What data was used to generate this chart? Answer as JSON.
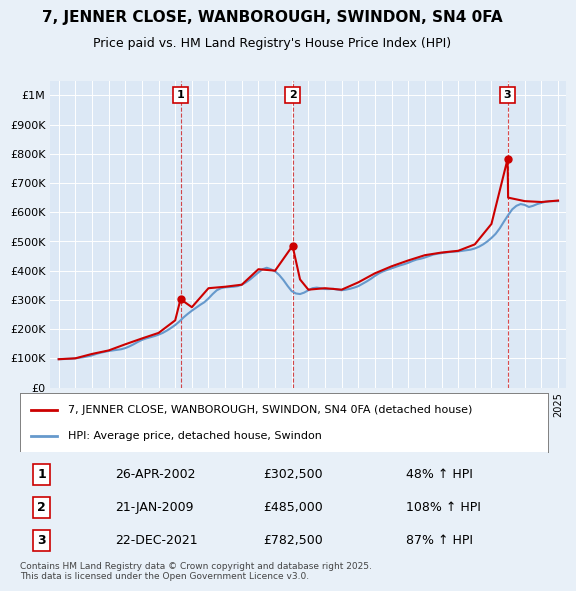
{
  "title": "7, JENNER CLOSE, WANBOROUGH, SWINDON, SN4 0FA",
  "subtitle": "Price paid vs. HM Land Registry's House Price Index (HPI)",
  "ylabel": "",
  "background_color": "#e8f0f8",
  "plot_bg_color": "#dce8f5",
  "sale_color": "#cc0000",
  "hpi_color": "#6699cc",
  "sale_label": "7, JENNER CLOSE, WANBOROUGH, SWINDON, SN4 0FA (detached house)",
  "hpi_label": "HPI: Average price, detached house, Swindon",
  "transactions": [
    {
      "num": 1,
      "date": "26-APR-2002",
      "price": 302500,
      "pct": "48%",
      "dir": "↑",
      "year": 2002.32
    },
    {
      "num": 2,
      "date": "21-JAN-2009",
      "price": 485000,
      "pct": "108%",
      "dir": "↑",
      "year": 2009.05
    },
    {
      "num": 3,
      "date": "22-DEC-2021",
      "price": 782500,
      "pct": "87%",
      "dir": "↑",
      "year": 2021.97
    }
  ],
  "footer": "Contains HM Land Registry data © Crown copyright and database right 2025.\nThis data is licensed under the Open Government Licence v3.0.",
  "ylim": [
    0,
    1050000
  ],
  "yticks": [
    0,
    100000,
    200000,
    300000,
    400000,
    500000,
    600000,
    700000,
    800000,
    900000,
    1000000
  ],
  "ytick_labels": [
    "£0",
    "£100K",
    "£200K",
    "£300K",
    "£400K",
    "£500K",
    "£600K",
    "£700K",
    "£800K",
    "£900K",
    "£1M"
  ],
  "hpi_data": {
    "years": [
      1995.0,
      1995.25,
      1995.5,
      1995.75,
      1996.0,
      1996.25,
      1996.5,
      1996.75,
      1997.0,
      1997.25,
      1997.5,
      1997.75,
      1998.0,
      1998.25,
      1998.5,
      1998.75,
      1999.0,
      1999.25,
      1999.5,
      1999.75,
      2000.0,
      2000.25,
      2000.5,
      2000.75,
      2001.0,
      2001.25,
      2001.5,
      2001.75,
      2002.0,
      2002.25,
      2002.5,
      2002.75,
      2003.0,
      2003.25,
      2003.5,
      2003.75,
      2004.0,
      2004.25,
      2004.5,
      2004.75,
      2005.0,
      2005.25,
      2005.5,
      2005.75,
      2006.0,
      2006.25,
      2006.5,
      2006.75,
      2007.0,
      2007.25,
      2007.5,
      2007.75,
      2008.0,
      2008.25,
      2008.5,
      2008.75,
      2009.0,
      2009.25,
      2009.5,
      2009.75,
      2010.0,
      2010.25,
      2010.5,
      2010.75,
      2011.0,
      2011.25,
      2011.5,
      2011.75,
      2012.0,
      2012.25,
      2012.5,
      2012.75,
      2013.0,
      2013.25,
      2013.5,
      2013.75,
      2014.0,
      2014.25,
      2014.5,
      2014.75,
      2015.0,
      2015.25,
      2015.5,
      2015.75,
      2016.0,
      2016.25,
      2016.5,
      2016.75,
      2017.0,
      2017.25,
      2017.5,
      2017.75,
      2018.0,
      2018.25,
      2018.5,
      2018.75,
      2019.0,
      2019.25,
      2019.5,
      2019.75,
      2020.0,
      2020.25,
      2020.5,
      2020.75,
      2021.0,
      2021.25,
      2021.5,
      2021.75,
      2022.0,
      2022.25,
      2022.5,
      2022.75,
      2023.0,
      2023.25,
      2023.5,
      2023.75,
      2024.0,
      2024.25,
      2024.5,
      2024.75,
      2025.0
    ],
    "values": [
      97000,
      97500,
      98000,
      98500,
      100000,
      102000,
      104000,
      107000,
      110000,
      115000,
      119000,
      122000,
      125000,
      127000,
      129000,
      131000,
      135000,
      141000,
      148000,
      156000,
      163000,
      168000,
      172000,
      176000,
      181000,
      187000,
      195000,
      204000,
      214000,
      226000,
      240000,
      252000,
      263000,
      273000,
      283000,
      292000,
      305000,
      320000,
      333000,
      340000,
      343000,
      344000,
      345000,
      347000,
      352000,
      360000,
      370000,
      382000,
      394000,
      405000,
      410000,
      405000,
      398000,
      385000,
      368000,
      348000,
      330000,
      322000,
      320000,
      325000,
      333000,
      340000,
      342000,
      340000,
      337000,
      337000,
      338000,
      335000,
      333000,
      335000,
      338000,
      342000,
      347000,
      355000,
      363000,
      372000,
      382000,
      391000,
      398000,
      403000,
      408000,
      413000,
      418000,
      422000,
      427000,
      433000,
      438000,
      441000,
      445000,
      450000,
      455000,
      458000,
      460000,
      462000,
      464000,
      465000,
      466000,
      468000,
      470000,
      472000,
      476000,
      482000,
      490000,
      500000,
      512000,
      526000,
      545000,
      568000,
      590000,
      610000,
      622000,
      628000,
      625000,
      618000,
      622000,
      628000,
      632000,
      636000,
      638000,
      638000,
      638000
    ]
  },
  "sale_data": {
    "years": [
      1995.0,
      1996.0,
      1997.0,
      1998.0,
      1999.0,
      2000.0,
      2001.0,
      2002.0,
      2002.32,
      2003.0,
      2004.0,
      2005.0,
      2006.0,
      2007.0,
      2008.0,
      2009.05,
      2009.5,
      2010.0,
      2011.0,
      2012.0,
      2013.0,
      2014.0,
      2015.0,
      2016.0,
      2017.0,
      2018.0,
      2019.0,
      2020.0,
      2021.0,
      2021.97,
      2022.0,
      2023.0,
      2024.0,
      2025.0
    ],
    "values": [
      97000,
      100000,
      115000,
      127000,
      148000,
      168000,
      187000,
      230000,
      302500,
      275000,
      340000,
      345000,
      352000,
      405000,
      400000,
      485000,
      370000,
      335000,
      340000,
      335000,
      360000,
      391000,
      415000,
      435000,
      453000,
      462000,
      468000,
      490000,
      560000,
      782500,
      650000,
      638000,
      635000,
      640000
    ]
  }
}
